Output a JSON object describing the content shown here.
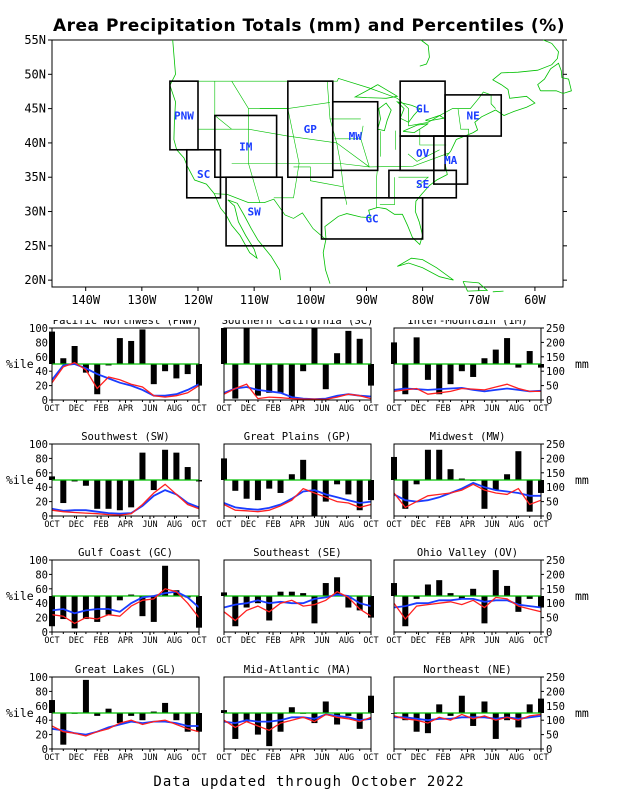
{
  "title": "Area Precipitation Totals (mm) and Percentiles (%)",
  "footer": "Data updated through October 2022",
  "map": {
    "lat_labels": [
      "55N",
      "50N",
      "45N",
      "40N",
      "35N",
      "30N",
      "25N",
      "20N"
    ],
    "lon_labels": [
      "140W",
      "130W",
      "120W",
      "110W",
      "100W",
      "90W",
      "80W",
      "70W",
      "60W"
    ],
    "regions": [
      {
        "code": "PNW",
        "lon": [
          -125,
          -120
        ],
        "lat": [
          39,
          49
        ]
      },
      {
        "code": "SC",
        "lon": [
          -122,
          -116
        ],
        "lat": [
          32,
          39
        ]
      },
      {
        "code": "IM",
        "lon": [
          -117,
          -106
        ],
        "lat": [
          35,
          44
        ]
      },
      {
        "code": "SW",
        "lon": [
          -115,
          -105
        ],
        "lat": [
          25,
          35
        ]
      },
      {
        "code": "GP",
        "lon": [
          -104,
          -96
        ],
        "lat": [
          35,
          49
        ]
      },
      {
        "code": "MW",
        "lon": [
          -96,
          -88
        ],
        "lat": [
          36,
          46
        ]
      },
      {
        "code": "GL",
        "lon": [
          -84,
          -76
        ],
        "lat": [
          41,
          49
        ]
      },
      {
        "code": "NE",
        "lon": [
          -76,
          -66
        ],
        "lat": [
          41,
          47
        ]
      },
      {
        "code": "OV",
        "lon": [
          -84,
          -76
        ],
        "lat": [
          36,
          41
        ]
      },
      {
        "code": "MA",
        "lon": [
          -78,
          -72
        ],
        "lat": [
          34,
          41
        ]
      },
      {
        "code": "SE",
        "lon": [
          -86,
          -74
        ],
        "lat": [
          32,
          36
        ]
      },
      {
        "code": "GC",
        "lon": [
          -98,
          -80
        ],
        "lat": [
          26,
          32
        ]
      }
    ]
  },
  "panel_axes": {
    "left_label": "%ile",
    "right_label": "mm",
    "left_ticks": [
      "0",
      "20",
      "40",
      "60",
      "80",
      "100"
    ],
    "right_ticks": [
      "0",
      "50",
      "100",
      "150",
      "200",
      "250"
    ],
    "x_ticks": [
      "OCT",
      "DEC",
      "FEB",
      "APR",
      "JUN",
      "AUG",
      "OCT"
    ]
  },
  "chart_data": [
    {
      "type": "bar",
      "title": "Pacific Northwest (PNW)",
      "ylim": [
        0,
        100
      ],
      "y2lim": [
        0,
        250
      ],
      "percentile": [
        95,
        58,
        75,
        38,
        8,
        48,
        86,
        82,
        98,
        22,
        40,
        30,
        36,
        20
      ],
      "mm_observed": [
        60,
        115,
        130,
        105,
        40,
        80,
        70,
        55,
        45,
        15,
        10,
        15,
        25,
        50
      ],
      "mm_normal": [
        70,
        120,
        125,
        110,
        90,
        75,
        60,
        50,
        35,
        15,
        15,
        20,
        35,
        55
      ]
    },
    {
      "type": "bar",
      "title": "Southern California (SC)",
      "ylim": [
        0,
        100
      ],
      "y2lim": [
        0,
        250
      ],
      "percentile": [
        100,
        2,
        100,
        6,
        10,
        10,
        2,
        40,
        100,
        15,
        65,
        96,
        85,
        20
      ],
      "mm_observed": [
        20,
        40,
        55,
        5,
        10,
        8,
        5,
        3,
        3,
        2,
        10,
        20,
        15,
        5
      ],
      "mm_normal": [
        25,
        40,
        45,
        35,
        30,
        25,
        10,
        5,
        3,
        5,
        15,
        20,
        15,
        12
      ]
    },
    {
      "type": "bar",
      "title": "Inter-Mountain (IM)",
      "ylim": [
        0,
        100
      ],
      "y2lim": [
        0,
        250
      ],
      "percentile": [
        80,
        8,
        87,
        28,
        8,
        22,
        40,
        32,
        58,
        70,
        86,
        45,
        68,
        45
      ],
      "mm_observed": [
        30,
        35,
        40,
        20,
        25,
        30,
        40,
        38,
        35,
        45,
        55,
        40,
        30,
        30
      ],
      "mm_normal": [
        35,
        40,
        38,
        35,
        38,
        40,
        42,
        35,
        30,
        35,
        40,
        35,
        30,
        32
      ]
    },
    {
      "type": "bar",
      "title": "Southwest (SW)",
      "ylim": [
        0,
        100
      ],
      "y2lim": [
        0,
        250
      ],
      "percentile": [
        55,
        18,
        48,
        42,
        10,
        10,
        8,
        12,
        88,
        36,
        92,
        88,
        68,
        48
      ],
      "mm_observed": [
        20,
        15,
        12,
        10,
        8,
        5,
        3,
        8,
        40,
        80,
        110,
        75,
        40,
        25
      ],
      "mm_normal": [
        25,
        18,
        20,
        20,
        15,
        10,
        8,
        10,
        35,
        70,
        90,
        75,
        45,
        30
      ]
    },
    {
      "type": "bar",
      "title": "Great Plains (GP)",
      "ylim": [
        0,
        100
      ],
      "y2lim": [
        0,
        250
      ],
      "percentile": [
        80,
        35,
        24,
        22,
        38,
        32,
        58,
        78,
        0,
        20,
        44,
        30,
        8,
        22
      ],
      "mm_observed": [
        40,
        20,
        18,
        15,
        20,
        35,
        55,
        95,
        80,
        65,
        50,
        45,
        30,
        40
      ],
      "mm_normal": [
        45,
        30,
        25,
        22,
        28,
        40,
        60,
        85,
        90,
        75,
        65,
        55,
        45,
        50
      ]
    },
    {
      "type": "bar",
      "title": "Midwest (MW)",
      "ylim": [
        0,
        100
      ],
      "y2lim": [
        0,
        250
      ],
      "percentile": [
        82,
        10,
        44,
        92,
        92,
        65,
        52,
        50,
        10,
        36,
        58,
        90,
        6,
        32
      ],
      "mm_observed": [
        80,
        30,
        50,
        70,
        75,
        80,
        90,
        110,
        90,
        80,
        75,
        95,
        40,
        55
      ],
      "mm_normal": [
        75,
        55,
        50,
        55,
        65,
        80,
        95,
        115,
        100,
        90,
        85,
        80,
        70,
        70
      ]
    },
    {
      "type": "bar",
      "title": "Gulf Coast (GC)",
      "ylim": [
        0,
        100
      ],
      "y2lim": [
        0,
        250
      ],
      "percentile": [
        8,
        18,
        5,
        18,
        14,
        24,
        44,
        52,
        22,
        14,
        92,
        58,
        48,
        6
      ],
      "mm_observed": [
        60,
        55,
        30,
        50,
        45,
        60,
        55,
        90,
        110,
        115,
        150,
        140,
        100,
        50
      ],
      "mm_normal": [
        75,
        80,
        65,
        75,
        80,
        80,
        70,
        100,
        120,
        125,
        135,
        140,
        120,
        85
      ]
    },
    {
      "type": "bar",
      "title": "Southeast (SE)",
      "ylim": [
        0,
        100
      ],
      "y2lim": [
        0,
        250
      ],
      "percentile": [
        55,
        8,
        34,
        40,
        16,
        56,
        56,
        54,
        12,
        68,
        76,
        34,
        30,
        20
      ],
      "mm_observed": [
        70,
        40,
        75,
        90,
        70,
        100,
        110,
        90,
        95,
        110,
        140,
        120,
        80,
        55
      ],
      "mm_normal": [
        85,
        95,
        100,
        110,
        100,
        105,
        100,
        100,
        115,
        120,
        130,
        125,
        100,
        90
      ]
    },
    {
      "type": "bar",
      "title": "Ohio Valley (OV)",
      "ylim": [
        0,
        100
      ],
      "y2lim": [
        0,
        250
      ],
      "percentile": [
        68,
        8,
        46,
        66,
        72,
        54,
        46,
        60,
        12,
        86,
        64,
        28,
        46,
        34
      ],
      "mm_observed": [
        100,
        45,
        90,
        95,
        100,
        105,
        95,
        110,
        85,
        120,
        115,
        90,
        80,
        70
      ],
      "mm_normal": [
        85,
        90,
        100,
        100,
        110,
        110,
        115,
        115,
        105,
        110,
        110,
        95,
        90,
        85
      ]
    },
    {
      "type": "bar",
      "title": "Great Lakes (GL)",
      "ylim": [
        0,
        100
      ],
      "y2lim": [
        0,
        250
      ],
      "percentile": [
        68,
        6,
        50,
        96,
        46,
        56,
        36,
        46,
        40,
        52,
        64,
        40,
        24,
        24
      ],
      "mm_observed": [
        80,
        60,
        55,
        45,
        60,
        70,
        90,
        100,
        85,
        95,
        100,
        85,
        70,
        60
      ],
      "mm_normal": [
        70,
        65,
        55,
        50,
        60,
        75,
        85,
        95,
        90,
        95,
        95,
        90,
        80,
        80
      ]
    },
    {
      "type": "bar",
      "title": "Mid-Atlantic (MA)",
      "ylim": [
        0,
        100
      ],
      "y2lim": [
        0,
        250
      ],
      "percentile": [
        54,
        14,
        38,
        20,
        4,
        24,
        58,
        50,
        36,
        66,
        34,
        46,
        28,
        74
      ],
      "mm_observed": [
        100,
        75,
        95,
        80,
        65,
        90,
        100,
        110,
        95,
        120,
        110,
        105,
        95,
        110
      ],
      "mm_normal": [
        95,
        90,
        100,
        95,
        95,
        100,
        110,
        110,
        105,
        120,
        115,
        110,
        100,
        105
      ]
    },
    {
      "type": "bar",
      "title": "Northeast (NE)",
      "ylim": [
        0,
        100
      ],
      "y2lim": [
        0,
        250
      ],
      "percentile": [
        50,
        40,
        24,
        22,
        62,
        46,
        74,
        32,
        66,
        14,
        40,
        30,
        62,
        70
      ],
      "mm_observed": [
        115,
        105,
        100,
        90,
        110,
        100,
        120,
        105,
        115,
        100,
        110,
        100,
        115,
        120
      ],
      "mm_normal": [
        110,
        110,
        105,
        100,
        105,
        105,
        110,
        110,
        110,
        105,
        110,
        105,
        110,
        115
      ]
    }
  ]
}
